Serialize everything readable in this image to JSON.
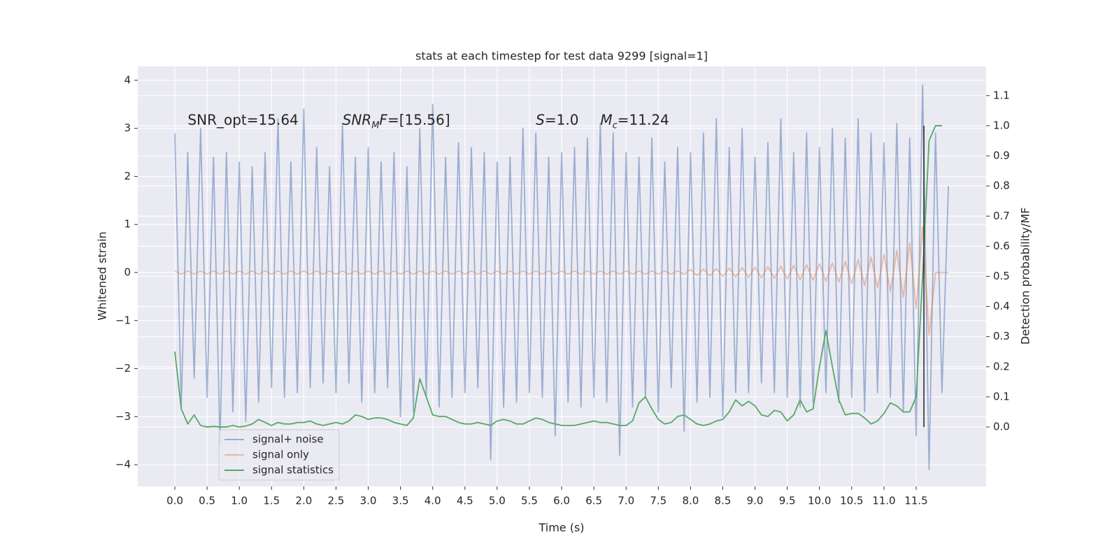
{
  "chart_data": {
    "type": "line",
    "title": "stats at each timestep for test data 9299 [signal=1]",
    "xlabel": "Time (s)",
    "ylabel": "Whitened strain",
    "y2label": "Detection probability/MF",
    "xlim": [
      -0.575,
      12.585
    ],
    "ylim": [
      -4.45,
      4.29
    ],
    "y2lim": [
      -0.197,
      1.197
    ],
    "xticks": [
      {
        "value": 0,
        "label": "0.0"
      },
      {
        "value": 0.5,
        "label": "0.5"
      },
      {
        "value": 1,
        "label": "1.0"
      },
      {
        "value": 1.5,
        "label": "1.5"
      },
      {
        "value": 2,
        "label": "2.0"
      },
      {
        "value": 2.5,
        "label": "2.5"
      },
      {
        "value": 3,
        "label": "3.0"
      },
      {
        "value": 3.5,
        "label": "3.5"
      },
      {
        "value": 4,
        "label": "4.0"
      },
      {
        "value": 4.5,
        "label": "4.5"
      },
      {
        "value": 5,
        "label": "5.0"
      },
      {
        "value": 5.5,
        "label": "5.5"
      },
      {
        "value": 6,
        "label": "6.0"
      },
      {
        "value": 6.5,
        "label": "6.5"
      },
      {
        "value": 7,
        "label": "7.0"
      },
      {
        "value": 7.5,
        "label": "7.5"
      },
      {
        "value": 8,
        "label": "8.0"
      },
      {
        "value": 8.5,
        "label": "8.5"
      },
      {
        "value": 9,
        "label": "9.0"
      },
      {
        "value": 9.5,
        "label": "9.5"
      },
      {
        "value": 10,
        "label": "10.0"
      },
      {
        "value": 10.5,
        "label": "10.5"
      },
      {
        "value": 11,
        "label": "11.0"
      },
      {
        "value": 11.5,
        "label": "11.5"
      }
    ],
    "yticks": [
      {
        "value": -4,
        "label": "−4"
      },
      {
        "value": -3,
        "label": "−3"
      },
      {
        "value": -2,
        "label": "−2"
      },
      {
        "value": -1,
        "label": "−1"
      },
      0,
      1,
      2,
      3,
      4
    ],
    "y2ticks": [
      {
        "value": 0,
        "label": "0.0"
      },
      {
        "value": 0.1,
        "label": "0.1"
      },
      {
        "value": 0.2,
        "label": "0.2"
      },
      {
        "value": 0.3,
        "label": "0.3"
      },
      {
        "value": 0.4,
        "label": "0.4"
      },
      {
        "value": 0.5,
        "label": "0.5"
      },
      {
        "value": 0.6,
        "label": "0.6"
      },
      {
        "value": 0.7,
        "label": "0.7"
      },
      {
        "value": 0.8,
        "label": "0.8"
      },
      {
        "value": 0.9,
        "label": "0.9"
      },
      {
        "value": 1,
        "label": "1.0"
      },
      {
        "value": 1.1,
        "label": "1.1"
      }
    ],
    "grid": true,
    "legend": "lower left",
    "series": [
      {
        "name": "signal+ noise",
        "color": "#4c72b0",
        "opacity": 0.5,
        "x": [
          0,
          0.1,
          0.2,
          0.3,
          0.4,
          0.5,
          0.6,
          0.7,
          0.8,
          0.9,
          1,
          1.1,
          1.2,
          1.3,
          1.4,
          1.5,
          1.6,
          1.7,
          1.8,
          1.9,
          2,
          2.1,
          2.2,
          2.3,
          2.4,
          2.5,
          2.6,
          2.7,
          2.8,
          2.9,
          3,
          3.1,
          3.2,
          3.3,
          3.4,
          3.5,
          3.6,
          3.7,
          3.8,
          3.9,
          4,
          4.1,
          4.2,
          4.3,
          4.4,
          4.5,
          4.6,
          4.7,
          4.8,
          4.9,
          5,
          5.1,
          5.2,
          5.3,
          5.4,
          5.5,
          5.6,
          5.7,
          5.8,
          5.9,
          6,
          6.1,
          6.2,
          6.3,
          6.4,
          6.5,
          6.6,
          6.7,
          6.8,
          6.9,
          7,
          7.1,
          7.2,
          7.3,
          7.4,
          7.5,
          7.6,
          7.7,
          7.8,
          7.9,
          8,
          8.1,
          8.2,
          8.3,
          8.4,
          8.5,
          8.6,
          8.7,
          8.8,
          8.9,
          9,
          9.1,
          9.2,
          9.3,
          9.4,
          9.5,
          9.6,
          9.7,
          9.8,
          9.9,
          10,
          10.1,
          10.2,
          10.3,
          10.4,
          10.5,
          10.6,
          10.7,
          10.8,
          10.9,
          11,
          11.1,
          11.2,
          11.3,
          11.4,
          11.5,
          11.6,
          11.7,
          11.8,
          11.9,
          12
        ],
        "values": [
          2.9,
          -2.8,
          2.5,
          -2.2,
          3.0,
          -2.6,
          2.4,
          -3.6,
          2.5,
          -2.9,
          2.3,
          -3.1,
          2.2,
          -2.7,
          2.5,
          -2.4,
          3.2,
          -2.6,
          2.3,
          -2.5,
          3.4,
          -2.4,
          2.6,
          -2.3,
          2.2,
          -2.5,
          3.1,
          -2.3,
          2.4,
          -2.7,
          2.6,
          -2.5,
          2.3,
          -2.4,
          2.5,
          -3.0,
          2.2,
          -2.9,
          3.0,
          -2.6,
          3.5,
          -2.8,
          2.4,
          -2.6,
          2.7,
          -2.5,
          2.6,
          -2.4,
          2.5,
          -3.9,
          2.3,
          -2.8,
          2.4,
          -2.7,
          3.0,
          -2.5,
          2.9,
          -2.6,
          2.4,
          -3.4,
          2.5,
          -2.7,
          2.6,
          -2.8,
          2.8,
          -2.6,
          3.1,
          -2.7,
          2.9,
          -3.8,
          2.5,
          -2.8,
          2.4,
          -2.6,
          2.8,
          -2.9,
          2.3,
          -2.4,
          2.6,
          -3.3,
          2.5,
          -2.7,
          2.9,
          -2.6,
          3.2,
          -3.0,
          2.6,
          -2.5,
          3.0,
          -2.5,
          2.4,
          -2.3,
          2.7,
          -2.5,
          3.2,
          -2.6,
          2.5,
          -2.8,
          2.9,
          -2.7,
          2.6,
          -2.5,
          3.0,
          -2.7,
          2.8,
          -2.6,
          3.2,
          -2.9,
          2.9,
          -2.5,
          2.7,
          -2.6,
          3.1,
          -2.9,
          2.8,
          -3.4,
          3.9,
          -4.1,
          2.9,
          -2.5,
          1.8
        ]
      },
      {
        "name": "signal only",
        "color": "#dd8452",
        "opacity": 0.5,
        "x": [
          0,
          0.1,
          0.2,
          0.3,
          0.4,
          0.5,
          0.6,
          0.7,
          0.8,
          0.9,
          1,
          1.1,
          1.2,
          1.3,
          1.4,
          1.5,
          1.6,
          1.7,
          1.8,
          1.9,
          2,
          2.1,
          2.2,
          2.3,
          2.4,
          2.5,
          2.6,
          2.7,
          2.8,
          2.9,
          3,
          3.1,
          3.2,
          3.3,
          3.4,
          3.5,
          3.6,
          3.7,
          3.8,
          3.9,
          4,
          4.1,
          4.2,
          4.3,
          4.4,
          4.5,
          4.6,
          4.7,
          4.8,
          4.9,
          5,
          5.1,
          5.2,
          5.3,
          5.4,
          5.5,
          5.6,
          5.7,
          5.8,
          5.9,
          6,
          6.1,
          6.2,
          6.3,
          6.4,
          6.5,
          6.6,
          6.7,
          6.8,
          6.9,
          7,
          7.1,
          7.2,
          7.3,
          7.4,
          7.5,
          7.6,
          7.7,
          7.8,
          7.9,
          8,
          8.1,
          8.2,
          8.3,
          8.4,
          8.5,
          8.6,
          8.7,
          8.8,
          8.9,
          9,
          9.1,
          9.2,
          9.3,
          9.4,
          9.5,
          9.6,
          9.7,
          9.8,
          9.9,
          10,
          10.1,
          10.2,
          10.3,
          10.4,
          10.5,
          10.6,
          10.7,
          10.8,
          10.9,
          11,
          11.1,
          11.2,
          11.3,
          11.4,
          11.5,
          11.6,
          11.7,
          11.8,
          11.9,
          12
        ],
        "values": [
          0.03,
          -0.03,
          0.03,
          -0.03,
          0.03,
          -0.03,
          0.03,
          -0.03,
          0.03,
          -0.03,
          0.03,
          -0.03,
          0.03,
          -0.03,
          0.03,
          -0.03,
          0.03,
          -0.03,
          0.03,
          -0.03,
          0.03,
          -0.03,
          0.03,
          -0.03,
          0.03,
          -0.03,
          0.03,
          -0.03,
          0.03,
          -0.03,
          0.03,
          -0.03,
          0.03,
          -0.03,
          0.03,
          -0.03,
          0.03,
          -0.03,
          0.03,
          -0.03,
          0.03,
          -0.03,
          0.03,
          -0.03,
          0.03,
          -0.03,
          0.03,
          -0.03,
          0.03,
          -0.03,
          0.03,
          -0.03,
          0.03,
          -0.03,
          0.03,
          -0.03,
          0.03,
          -0.03,
          0.03,
          -0.03,
          0.03,
          -0.03,
          0.03,
          -0.03,
          0.03,
          -0.03,
          0.03,
          -0.03,
          0.03,
          -0.03,
          0.03,
          -0.03,
          0.03,
          -0.03,
          0.03,
          -0.03,
          0.03,
          -0.03,
          0.03,
          -0.03,
          0.06,
          -0.06,
          0.07,
          -0.07,
          0.08,
          -0.08,
          0.09,
          -0.09,
          0.1,
          -0.1,
          0.11,
          -0.11,
          0.12,
          -0.12,
          0.13,
          -0.13,
          0.15,
          -0.15,
          0.16,
          -0.16,
          0.18,
          -0.18,
          0.2,
          -0.2,
          0.23,
          -0.23,
          0.27,
          -0.27,
          0.32,
          -0.32,
          0.38,
          -0.4,
          0.46,
          -0.52,
          0.62,
          -0.75,
          0.95,
          -1.3,
          0,
          0,
          0
        ]
      },
      {
        "name": "signal statistics",
        "color": "#55a868",
        "opacity": 1,
        "axis": "y2",
        "x": [
          0,
          0.1,
          0.2,
          0.3,
          0.4,
          0.5,
          0.6,
          0.7,
          0.8,
          0.9,
          1,
          1.1,
          1.2,
          1.3,
          1.4,
          1.5,
          1.6,
          1.7,
          1.8,
          1.9,
          2,
          2.1,
          2.2,
          2.3,
          2.4,
          2.5,
          2.6,
          2.7,
          2.8,
          2.9,
          3,
          3.1,
          3.2,
          3.3,
          3.4,
          3.5,
          3.6,
          3.7,
          3.8,
          3.9,
          4,
          4.1,
          4.2,
          4.3,
          4.4,
          4.5,
          4.6,
          4.7,
          4.8,
          4.9,
          5,
          5.1,
          5.2,
          5.3,
          5.4,
          5.5,
          5.6,
          5.7,
          5.8,
          5.9,
          6,
          6.1,
          6.2,
          6.3,
          6.4,
          6.5,
          6.6,
          6.7,
          6.8,
          6.9,
          7,
          7.1,
          7.2,
          7.3,
          7.4,
          7.5,
          7.6,
          7.7,
          7.8,
          7.9,
          8,
          8.1,
          8.2,
          8.3,
          8.4,
          8.5,
          8.6,
          8.7,
          8.8,
          8.9,
          9,
          9.1,
          9.2,
          9.3,
          9.4,
          9.5,
          9.6,
          9.7,
          9.8,
          9.9,
          10,
          10.1,
          10.2,
          10.3,
          10.4,
          10.5,
          10.6,
          10.7,
          10.8,
          10.9,
          11,
          11.1,
          11.2,
          11.3,
          11.4,
          11.5,
          11.6,
          11.7,
          11.8,
          11.9
        ],
        "values": [
          0.25,
          0.06,
          0.01,
          0.04,
          0.005,
          0,
          0.002,
          0,
          0,
          0.005,
          0,
          0.003,
          0.01,
          0.025,
          0.015,
          0.005,
          0.015,
          0.01,
          0.01,
          0.015,
          0.015,
          0.02,
          0.01,
          0.005,
          0.01,
          0.015,
          0.01,
          0.02,
          0.04,
          0.035,
          0.025,
          0.03,
          0.03,
          0.025,
          0.015,
          0.01,
          0.005,
          0.03,
          0.16,
          0.1,
          0.04,
          0.035,
          0.035,
          0.025,
          0.015,
          0.01,
          0.01,
          0.015,
          0.01,
          0.005,
          0.02,
          0.025,
          0.02,
          0.01,
          0.01,
          0.02,
          0.03,
          0.025,
          0.015,
          0.01,
          0.005,
          0.005,
          0.005,
          0.01,
          0.015,
          0.02,
          0.015,
          0.015,
          0.01,
          0.005,
          0.005,
          0.02,
          0.08,
          0.1,
          0.06,
          0.025,
          0.01,
          0.015,
          0.035,
          0.04,
          0.025,
          0.01,
          0.005,
          0.01,
          0.02,
          0.025,
          0.05,
          0.09,
          0.07,
          0.085,
          0.07,
          0.04,
          0.035,
          0.055,
          0.05,
          0.02,
          0.04,
          0.09,
          0.05,
          0.06,
          0.2,
          0.32,
          0.2,
          0.09,
          0.04,
          0.045,
          0.045,
          0.03,
          0.01,
          0.02,
          0.045,
          0.08,
          0.07,
          0.05,
          0.05,
          0.1,
          0.5,
          0.95,
          1.0,
          1.0
        ]
      }
    ],
    "vline": {
      "x": 11.62,
      "y2": [
        0,
        1
      ],
      "color": "#222222"
    },
    "annotations": [
      {
        "x": 0.2,
        "y": 3.16,
        "parts": [
          {
            "text": "SNR_opt=15.64"
          }
        ]
      },
      {
        "x": 2.6,
        "y": 3.16,
        "parts": [
          {
            "text": "SNR",
            "italic": true
          },
          {
            "text": "M",
            "italic": true,
            "sub": true
          },
          {
            "text": "F",
            "italic": true
          },
          {
            "text": "=[15.56]"
          }
        ]
      },
      {
        "x": 5.6,
        "y": 3.16,
        "parts": [
          {
            "text": "S",
            "italic": true
          },
          {
            "text": "=1.0"
          }
        ]
      },
      {
        "x": 6.6,
        "y": 3.16,
        "parts": [
          {
            "text": "M",
            "italic": true
          },
          {
            "text": "c",
            "italic": true,
            "sub": true
          },
          {
            "text": "=11.24"
          }
        ]
      }
    ]
  }
}
